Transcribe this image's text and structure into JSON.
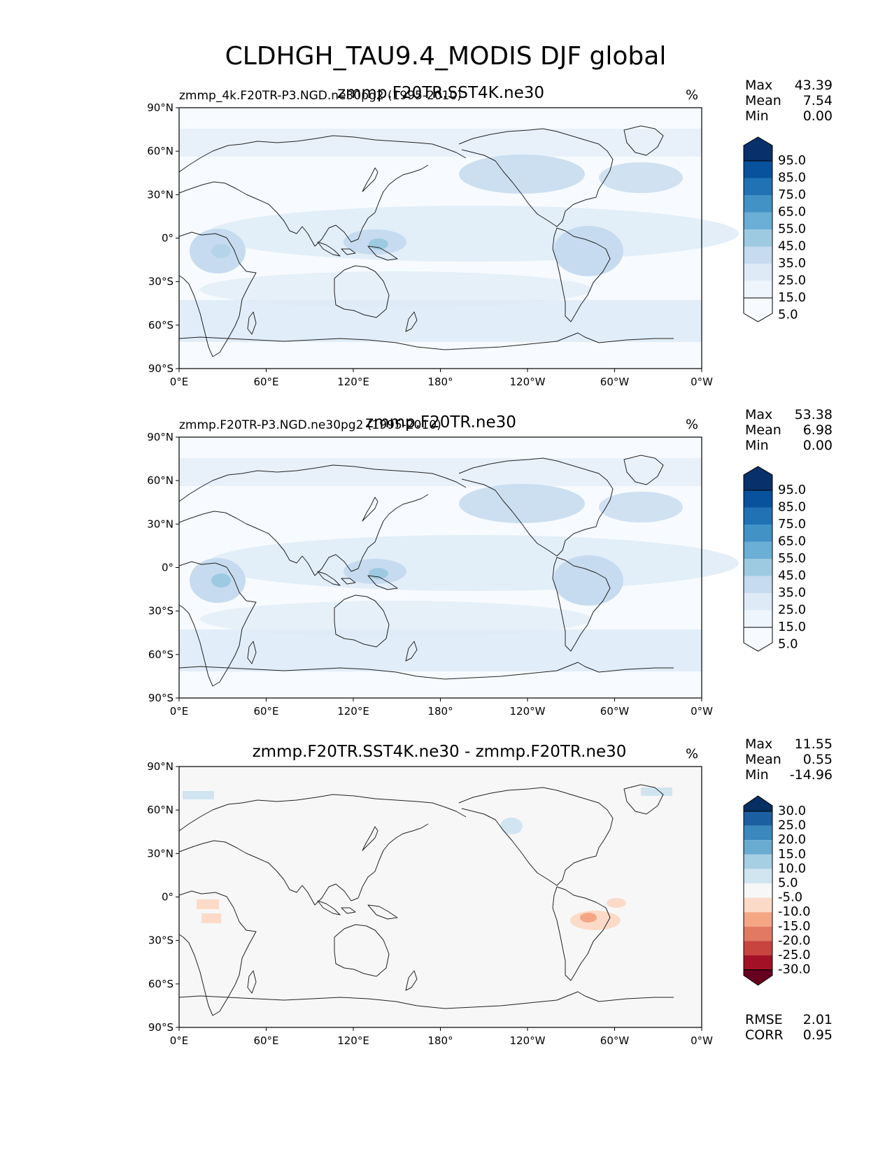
{
  "figure_title": "CLDHGH_TAU9.4_MODIS DJF global",
  "colors": {
    "blues": [
      "#f7fbff",
      "#deebf7",
      "#c6dbef",
      "#9ecae1",
      "#6baed6",
      "#4292c6",
      "#2171b5",
      "#08519c",
      "#08306b"
    ],
    "diff_pos": [
      "#d1e5f0",
      "#a6cfe4",
      "#6aabd1",
      "#3a88bd",
      "#1c5fa1",
      "#053061"
    ],
    "diff_neg": [
      "#fbdbc8",
      "#f4a685",
      "#e27a63",
      "#c7443f",
      "#a31126",
      "#67001f"
    ],
    "diff_neutral": "#f7f7f7",
    "coast": "#222222"
  },
  "chart_data": [
    {
      "type": "heatmap",
      "panel": "test",
      "title": "zmmp.F20TR.SST4K.ne30",
      "subtitle_left": "zmmp_4k.F20TR-P3.NGD.ne30pg2 (1995-2010)",
      "units": "%",
      "stats": [
        {
          "label": "Max",
          "value": "43.39"
        },
        {
          "label": "Mean",
          "value": "7.54"
        },
        {
          "label": "Min",
          "value": "0.00"
        }
      ],
      "x_ticks": [
        "0°E",
        "60°E",
        "120°E",
        "180°",
        "120°W",
        "60°W",
        "0°W"
      ],
      "y_ticks": [
        "90°N",
        "60°N",
        "30°N",
        "0°",
        "30°S",
        "60°S",
        "90°S"
      ],
      "colorbar_levels": [
        "95.0",
        "85.0",
        "75.0",
        "65.0",
        "55.0",
        "45.0",
        "35.0",
        "25.0",
        "15.0",
        "5.0"
      ],
      "xlim": [
        0,
        360
      ],
      "ylim": [
        -90,
        90
      ]
    },
    {
      "type": "heatmap",
      "panel": "reference",
      "title": "zmmp.F20TR.ne30",
      "subtitle_left": "zmmp.F20TR-P3.NGD.ne30pg2 (1995-2010)",
      "units": "%",
      "stats": [
        {
          "label": "Max",
          "value": "53.38"
        },
        {
          "label": "Mean",
          "value": "6.98"
        },
        {
          "label": "Min",
          "value": "0.00"
        }
      ],
      "x_ticks": [
        "0°E",
        "60°E",
        "120°E",
        "180°",
        "120°W",
        "60°W",
        "0°W"
      ],
      "y_ticks": [
        "90°N",
        "60°N",
        "30°N",
        "0°",
        "30°S",
        "60°S",
        "90°S"
      ],
      "colorbar_levels": [
        "95.0",
        "85.0",
        "75.0",
        "65.0",
        "55.0",
        "45.0",
        "35.0",
        "25.0",
        "15.0",
        "5.0"
      ],
      "xlim": [
        0,
        360
      ],
      "ylim": [
        -90,
        90
      ]
    },
    {
      "type": "heatmap",
      "panel": "difference",
      "title": "zmmp.F20TR.SST4K.ne30 - zmmp.F20TR.ne30",
      "subtitle_left": "",
      "units": "%",
      "stats": [
        {
          "label": "Max",
          "value": "11.55"
        },
        {
          "label": "Mean",
          "value": "0.55"
        },
        {
          "label": "Min",
          "value": "-14.96"
        }
      ],
      "x_ticks": [
        "0°E",
        "60°E",
        "120°E",
        "180°",
        "120°W",
        "60°W",
        "0°W"
      ],
      "y_ticks": [
        "90°N",
        "60°N",
        "30°N",
        "0°",
        "30°S",
        "60°S",
        "90°S"
      ],
      "colorbar_levels": [
        "30.0",
        "25.0",
        "20.0",
        "15.0",
        "10.0",
        "5.0",
        "-5.0",
        "-10.0",
        "-15.0",
        "-20.0",
        "-25.0",
        "-30.0"
      ],
      "xlim": [
        0,
        360
      ],
      "ylim": [
        -90,
        90
      ],
      "metrics": [
        {
          "label": "RMSE",
          "value": "2.01"
        },
        {
          "label": "CORR",
          "value": "0.95"
        }
      ]
    }
  ]
}
